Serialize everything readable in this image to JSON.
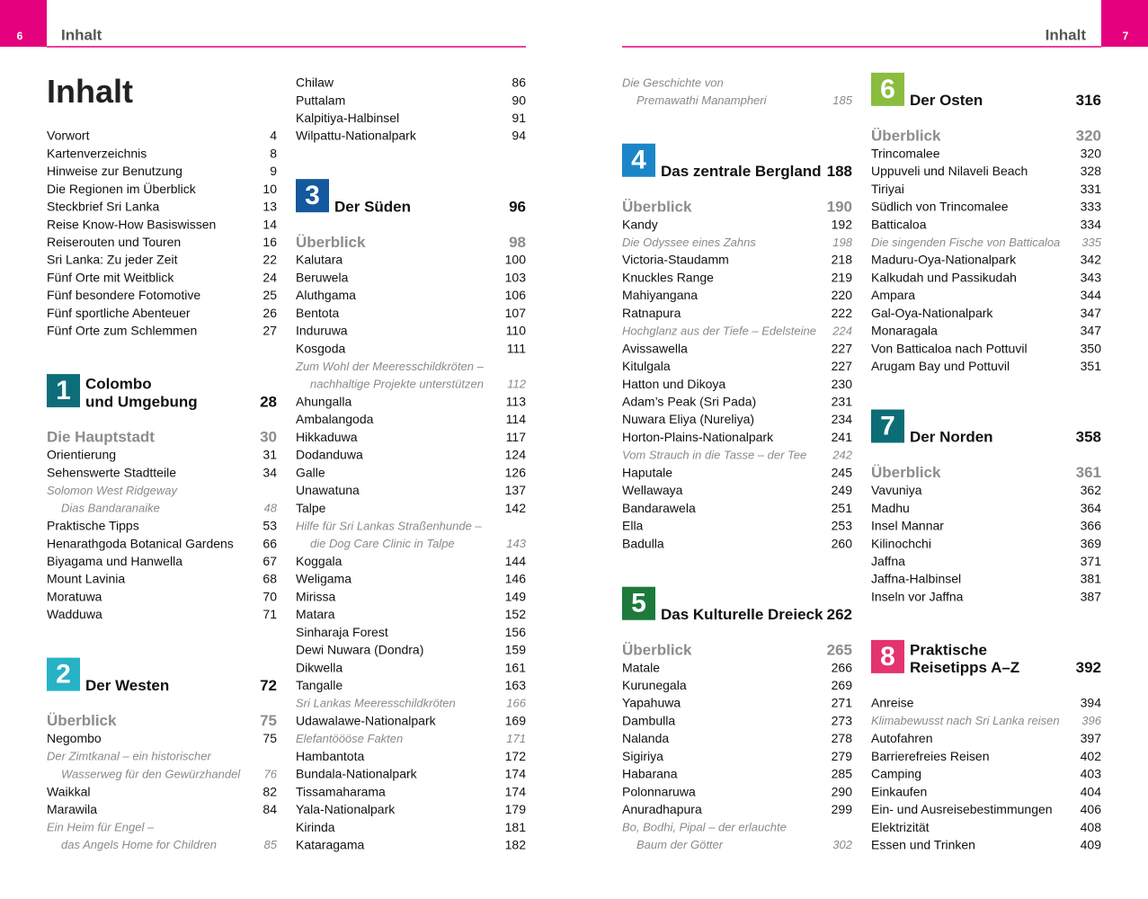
{
  "header": {
    "left_page": "6",
    "left_title": "Inhalt",
    "right_title": "Inhalt",
    "right_page": "7"
  },
  "columns": [
    [
      {
        "heading": "Inhalt"
      },
      {
        "label": "Vorwort",
        "page": 4
      },
      {
        "label": "Kartenverzeichnis",
        "page": 8
      },
      {
        "label": "Hinweise zur Benutzung",
        "page": 9
      },
      {
        "label": "Die Regionen im Überblick",
        "page": 10
      },
      {
        "label": "Steckbrief Sri Lanka",
        "page": 13
      },
      {
        "label": "Reise Know-How Basiswissen",
        "page": 14
      },
      {
        "label": "Reiserouten und Touren",
        "page": 16
      },
      {
        "label": "Sri Lanka: Zu jeder Zeit",
        "page": 22
      },
      {
        "label": "Fünf Orte mit Weitblick",
        "page": 24
      },
      {
        "label": "Fünf besondere Fotomotive",
        "page": 25
      },
      {
        "label": "Fünf sportliche Abenteuer",
        "page": 26
      },
      {
        "label": "Fünf Orte zum Schlemmen",
        "page": 27
      },
      {
        "section": "1",
        "title": [
          "Colombo",
          "und Umgebung"
        ],
        "page": 28,
        "color": "#0d6e79"
      },
      {
        "overview": "Die Hauptstadt",
        "page": 30
      },
      {
        "label": "Orientierung",
        "page": 31
      },
      {
        "label": "Sehenswerte Stadtteile",
        "page": 34
      },
      {
        "note": [
          "Solomon West Ridgeway",
          "Dias Bandaranaike"
        ],
        "page": 48
      },
      {
        "label": "Praktische Tipps",
        "page": 53
      },
      {
        "label": "Henarathgoda Botanical Gardens",
        "page": 66
      },
      {
        "label": "Biyagama und Hanwella",
        "page": 67
      },
      {
        "label": "Mount Lavinia",
        "page": 68
      },
      {
        "label": "Moratuwa",
        "page": 70
      },
      {
        "label": "Wadduwa",
        "page": 71
      },
      {
        "section": "2",
        "title": [
          "Der Westen"
        ],
        "page": 72,
        "color": "#27b2c6"
      },
      {
        "overview": "Überblick",
        "page": 75
      },
      {
        "label": "Negombo",
        "page": 75
      },
      {
        "note": [
          "Der Zimtkanal – ein historischer",
          "Wasserweg für den Gewürzhandel"
        ],
        "page": 76
      },
      {
        "label": "Waikkal",
        "page": 82
      },
      {
        "label": "Marawila",
        "page": 84
      },
      {
        "note": [
          "Ein Heim für Engel –",
          "das Angels Home for Children"
        ],
        "page": 85
      }
    ],
    [
      {
        "label": "Chilaw",
        "page": 86
      },
      {
        "label": "Puttalam",
        "page": 90
      },
      {
        "label": "Kalpitiya-Halbinsel",
        "page": 91
      },
      {
        "label": "Wilpattu-Nationalpark",
        "page": 94
      },
      {
        "section": "3",
        "title": [
          "Der Süden"
        ],
        "page": 96,
        "color": "#14589f"
      },
      {
        "overview": "Überblick",
        "page": 98
      },
      {
        "label": "Kalutara",
        "page": 100
      },
      {
        "label": "Beruwela",
        "page": 103
      },
      {
        "label": "Aluthgama",
        "page": 106
      },
      {
        "label": "Bentota",
        "page": 107
      },
      {
        "label": "Induruwa",
        "page": 110
      },
      {
        "label": "Kosgoda",
        "page": 111
      },
      {
        "note": [
          "Zum Wohl der Meeresschildkröten –",
          "nachhaltige Projekte unterstützen"
        ],
        "page": 112
      },
      {
        "label": "Ahungalla",
        "page": 113
      },
      {
        "label": "Ambalangoda",
        "page": 114
      },
      {
        "label": "Hikkaduwa",
        "page": 117
      },
      {
        "label": "Dodanduwa",
        "page": 124
      },
      {
        "label": "Galle",
        "page": 126
      },
      {
        "label": "Unawatuna",
        "page": 137
      },
      {
        "label": "Talpe",
        "page": 142
      },
      {
        "note": [
          "Hilfe für Sri Lankas Straßenhunde –",
          "die Dog Care Clinic in Talpe"
        ],
        "page": 143
      },
      {
        "label": "Koggala",
        "page": 144
      },
      {
        "label": "Weligama",
        "page": 146
      },
      {
        "label": "Mirissa",
        "page": 149
      },
      {
        "label": "Matara",
        "page": 152
      },
      {
        "label": "Sinharaja Forest",
        "page": 156
      },
      {
        "label": "Dewi Nuwara (Dondra)",
        "page": 159
      },
      {
        "label": "Dikwella",
        "page": 161
      },
      {
        "label": "Tangalle",
        "page": 163
      },
      {
        "note": [
          "Sri Lankas Meeresschildkröten"
        ],
        "page": 166
      },
      {
        "label": "Udawalawe-Nationalpark",
        "page": 169
      },
      {
        "note": [
          "Elefantöööse Fakten"
        ],
        "page": 171
      },
      {
        "label": "Hambantota",
        "page": 172
      },
      {
        "label": "Bundala-Nationalpark",
        "page": 174
      },
      {
        "label": "Tissamaharama",
        "page": 174
      },
      {
        "label": "Yala-Nationalpark",
        "page": 179
      },
      {
        "label": "Kirinda",
        "page": 181
      },
      {
        "label": "Kataragama",
        "page": 182
      }
    ],
    [
      {
        "note": [
          "Die Geschichte von",
          "Premawathi Manampheri"
        ],
        "page": 185
      },
      {
        "section": "4",
        "title": [
          "Das zentrale Bergland"
        ],
        "page": 188,
        "color": "#1a86c8"
      },
      {
        "overview": "Überblick",
        "page": 190
      },
      {
        "label": "Kandy",
        "page": 192
      },
      {
        "note": [
          "Die Odyssee eines Zahns"
        ],
        "page": 198
      },
      {
        "label": "Victoria-Staudamm",
        "page": 218
      },
      {
        "label": "Knuckles Range",
        "page": 219
      },
      {
        "label": "Mahiyangana",
        "page": 220
      },
      {
        "label": "Ratnapura",
        "page": 222
      },
      {
        "note": [
          "Hochglanz aus der Tiefe – Edelsteine"
        ],
        "page": 224
      },
      {
        "label": "Avissawella",
        "page": 227
      },
      {
        "label": "Kitulgala",
        "page": 227
      },
      {
        "label": "Hatton und Dikoya",
        "page": 230
      },
      {
        "label": "Adam’s Peak (Sri Pada)",
        "page": 231
      },
      {
        "label": "Nuwara Eliya (Nureliya)",
        "page": 234
      },
      {
        "label": "Horton-Plains-Nationalpark",
        "page": 241
      },
      {
        "note": [
          "Vom Strauch in die Tasse – der Tee"
        ],
        "page": 242
      },
      {
        "label": "Haputale",
        "page": 245
      },
      {
        "label": "Wellawaya",
        "page": 249
      },
      {
        "label": "Bandarawela",
        "page": 251
      },
      {
        "label": "Ella",
        "page": 253
      },
      {
        "label": "Badulla",
        "page": 260
      },
      {
        "section": "5",
        "title": [
          "Das Kulturelle Dreieck"
        ],
        "page": 262,
        "color": "#1d7a3b"
      },
      {
        "overview": "Überblick",
        "page": 265
      },
      {
        "label": "Matale",
        "page": 266
      },
      {
        "label": "Kurunegala",
        "page": 269
      },
      {
        "label": "Yapahuwa",
        "page": 271
      },
      {
        "label": "Dambulla",
        "page": 273
      },
      {
        "label": "Nalanda",
        "page": 278
      },
      {
        "label": "Sigiriya",
        "page": 279
      },
      {
        "label": "Habarana",
        "page": 285
      },
      {
        "label": "Polonnaruwa",
        "page": 290
      },
      {
        "label": "Anuradhapura",
        "page": 299
      },
      {
        "note": [
          "Bo, Bodhi, Pipal – der erlauchte",
          "Baum der Götter"
        ],
        "page": 302
      }
    ],
    [
      {
        "section": "6",
        "title": [
          "Der Osten"
        ],
        "page": 316,
        "color": "#8abd3e"
      },
      {
        "overview": "Überblick",
        "page": 320
      },
      {
        "label": "Trincomalee",
        "page": 320
      },
      {
        "label": "Uppuveli und Nilaveli Beach",
        "page": 328
      },
      {
        "label": "Tiriyai",
        "page": 331
      },
      {
        "label": "Südlich von Trincomalee",
        "page": 333
      },
      {
        "label": "Batticaloa",
        "page": 334
      },
      {
        "note": [
          "Die singenden Fische von Batticaloa"
        ],
        "page": 335
      },
      {
        "label": "Maduru-Oya-Nationalpark",
        "page": 342
      },
      {
        "label": "Kalkudah und Passikudah",
        "page": 343
      },
      {
        "label": "Ampara",
        "page": 344
      },
      {
        "label": "Gal-Oya-Nationalpark",
        "page": 347
      },
      {
        "label": "Monaragala",
        "page": 347
      },
      {
        "label": "Von Batticaloa nach Pottuvil",
        "page": 350
      },
      {
        "label": "Arugam Bay und Pottuvil",
        "page": 351
      },
      {
        "section": "7",
        "title": [
          "Der Norden"
        ],
        "page": 358,
        "color": "#0c6d77"
      },
      {
        "overview": "Überblick",
        "page": 361
      },
      {
        "label": "Vavuniya",
        "page": 362
      },
      {
        "label": "Madhu",
        "page": 364
      },
      {
        "label": "Insel Mannar",
        "page": 366
      },
      {
        "label": "Kilinochchi",
        "page": 369
      },
      {
        "label": "Jaffna",
        "page": 371
      },
      {
        "label": "Jaffna-Halbinsel",
        "page": 381
      },
      {
        "label": "Inseln vor Jaffna",
        "page": 387
      },
      {
        "section": "8",
        "title": [
          "Praktische",
          "Reisetipps A–Z"
        ],
        "page": 392,
        "color": "#e4336d"
      },
      {
        "label": "Anreise",
        "page": 394
      },
      {
        "note": [
          "Klimabewusst nach Sri Lanka reisen"
        ],
        "page": 396
      },
      {
        "label": "Autofahren",
        "page": 397
      },
      {
        "label": "Barrierefreies Reisen",
        "page": 402
      },
      {
        "label": "Camping",
        "page": 403
      },
      {
        "label": "Einkaufen",
        "page": 404
      },
      {
        "label": "Ein- und Ausreisebestimmungen",
        "page": 406
      },
      {
        "label": "Elektrizität",
        "page": 408
      },
      {
        "label": "Essen und Trinken",
        "page": 409
      }
    ]
  ]
}
